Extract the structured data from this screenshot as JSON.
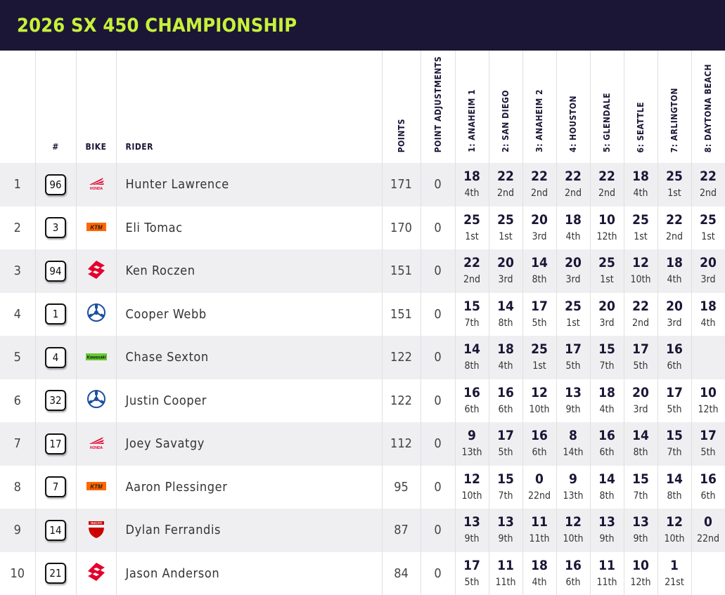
{
  "title": "2026 SX 450 CHAMPIONSHIP",
  "columns": {
    "pos": "",
    "number": "#",
    "bike": "BIKE",
    "rider": "RIDER",
    "points": "POINTS",
    "adjustments": "POINT ADJUSTMENTS",
    "races": [
      "1: ANAHEIM 1",
      "2: SAN DIEGO",
      "3: ANAHEIM 2",
      "4: HOUSTON",
      "5: GLENDALE",
      "6: SEATTLE",
      "7: ARLINGTON",
      "8: DAYTONA BEACH"
    ]
  },
  "brands": {
    "honda": {
      "text": "HONDA",
      "color": "#e4002b"
    },
    "ktm": {
      "text": "KTM",
      "color": "#ff6600"
    },
    "suzuki": {
      "color": "#e4002b"
    },
    "yamaha": {
      "color": "#1d4fa0"
    },
    "kawasaki": {
      "text": "Kawasaki",
      "color": "#66cc33"
    },
    "ducati": {
      "text": "DUCATI",
      "color": "#cc0000"
    }
  },
  "rows": [
    {
      "pos": "1",
      "number": "96",
      "bike": "honda",
      "rider": "Hunter Lawrence",
      "points": "171",
      "adj": "0",
      "results": [
        {
          "pts": "18",
          "fin": "4th"
        },
        {
          "pts": "22",
          "fin": "2nd"
        },
        {
          "pts": "22",
          "fin": "2nd"
        },
        {
          "pts": "22",
          "fin": "2nd"
        },
        {
          "pts": "22",
          "fin": "2nd"
        },
        {
          "pts": "18",
          "fin": "4th"
        },
        {
          "pts": "25",
          "fin": "1st"
        },
        {
          "pts": "22",
          "fin": "2nd"
        }
      ]
    },
    {
      "pos": "2",
      "number": "3",
      "bike": "ktm",
      "rider": "Eli Tomac",
      "points": "170",
      "adj": "0",
      "results": [
        {
          "pts": "25",
          "fin": "1st"
        },
        {
          "pts": "25",
          "fin": "1st"
        },
        {
          "pts": "20",
          "fin": "3rd"
        },
        {
          "pts": "18",
          "fin": "4th"
        },
        {
          "pts": "10",
          "fin": "12th"
        },
        {
          "pts": "25",
          "fin": "1st"
        },
        {
          "pts": "22",
          "fin": "2nd"
        },
        {
          "pts": "25",
          "fin": "1st"
        }
      ]
    },
    {
      "pos": "3",
      "number": "94",
      "bike": "suzuki",
      "rider": "Ken Roczen",
      "points": "151",
      "adj": "0",
      "results": [
        {
          "pts": "22",
          "fin": "2nd"
        },
        {
          "pts": "20",
          "fin": "3rd"
        },
        {
          "pts": "14",
          "fin": "8th"
        },
        {
          "pts": "20",
          "fin": "3rd"
        },
        {
          "pts": "25",
          "fin": "1st"
        },
        {
          "pts": "12",
          "fin": "10th"
        },
        {
          "pts": "18",
          "fin": "4th"
        },
        {
          "pts": "20",
          "fin": "3rd"
        }
      ]
    },
    {
      "pos": "4",
      "number": "1",
      "bike": "yamaha",
      "rider": "Cooper Webb",
      "points": "151",
      "adj": "0",
      "results": [
        {
          "pts": "15",
          "fin": "7th"
        },
        {
          "pts": "14",
          "fin": "8th"
        },
        {
          "pts": "17",
          "fin": "5th"
        },
        {
          "pts": "25",
          "fin": "1st"
        },
        {
          "pts": "20",
          "fin": "3rd"
        },
        {
          "pts": "22",
          "fin": "2nd"
        },
        {
          "pts": "20",
          "fin": "3rd"
        },
        {
          "pts": "18",
          "fin": "4th"
        }
      ]
    },
    {
      "pos": "5",
      "number": "4",
      "bike": "kawasaki",
      "rider": "Chase Sexton",
      "points": "122",
      "adj": "0",
      "results": [
        {
          "pts": "14",
          "fin": "8th"
        },
        {
          "pts": "18",
          "fin": "4th"
        },
        {
          "pts": "25",
          "fin": "1st"
        },
        {
          "pts": "17",
          "fin": "5th"
        },
        {
          "pts": "15",
          "fin": "7th"
        },
        {
          "pts": "17",
          "fin": "5th"
        },
        {
          "pts": "16",
          "fin": "6th"
        },
        {
          "pts": "",
          "fin": ""
        }
      ]
    },
    {
      "pos": "6",
      "number": "32",
      "bike": "yamaha",
      "rider": "Justin Cooper",
      "points": "122",
      "adj": "0",
      "results": [
        {
          "pts": "16",
          "fin": "6th"
        },
        {
          "pts": "16",
          "fin": "6th"
        },
        {
          "pts": "12",
          "fin": "10th"
        },
        {
          "pts": "13",
          "fin": "9th"
        },
        {
          "pts": "18",
          "fin": "4th"
        },
        {
          "pts": "20",
          "fin": "3rd"
        },
        {
          "pts": "17",
          "fin": "5th"
        },
        {
          "pts": "10",
          "fin": "12th"
        }
      ]
    },
    {
      "pos": "7",
      "number": "17",
      "bike": "honda",
      "rider": "Joey Savatgy",
      "points": "112",
      "adj": "0",
      "results": [
        {
          "pts": "9",
          "fin": "13th"
        },
        {
          "pts": "17",
          "fin": "5th"
        },
        {
          "pts": "16",
          "fin": "6th"
        },
        {
          "pts": "8",
          "fin": "14th"
        },
        {
          "pts": "16",
          "fin": "6th"
        },
        {
          "pts": "14",
          "fin": "8th"
        },
        {
          "pts": "15",
          "fin": "7th"
        },
        {
          "pts": "17",
          "fin": "5th"
        }
      ]
    },
    {
      "pos": "8",
      "number": "7",
      "bike": "ktm",
      "rider": "Aaron Plessinger",
      "points": "95",
      "adj": "0",
      "results": [
        {
          "pts": "12",
          "fin": "10th"
        },
        {
          "pts": "15",
          "fin": "7th"
        },
        {
          "pts": "0",
          "fin": "22nd"
        },
        {
          "pts": "9",
          "fin": "13th"
        },
        {
          "pts": "14",
          "fin": "8th"
        },
        {
          "pts": "15",
          "fin": "7th"
        },
        {
          "pts": "14",
          "fin": "8th"
        },
        {
          "pts": "16",
          "fin": "6th"
        }
      ]
    },
    {
      "pos": "9",
      "number": "14",
      "bike": "ducati",
      "rider": "Dylan Ferrandis",
      "points": "87",
      "adj": "0",
      "results": [
        {
          "pts": "13",
          "fin": "9th"
        },
        {
          "pts": "13",
          "fin": "9th"
        },
        {
          "pts": "11",
          "fin": "11th"
        },
        {
          "pts": "12",
          "fin": "10th"
        },
        {
          "pts": "13",
          "fin": "9th"
        },
        {
          "pts": "13",
          "fin": "9th"
        },
        {
          "pts": "12",
          "fin": "10th"
        },
        {
          "pts": "0",
          "fin": "22nd"
        }
      ]
    },
    {
      "pos": "10",
      "number": "21",
      "bike": "suzuki",
      "rider": "Jason Anderson",
      "points": "84",
      "adj": "0",
      "results": [
        {
          "pts": "17",
          "fin": "5th"
        },
        {
          "pts": "11",
          "fin": "11th"
        },
        {
          "pts": "18",
          "fin": "4th"
        },
        {
          "pts": "16",
          "fin": "6th"
        },
        {
          "pts": "11",
          "fin": "11th"
        },
        {
          "pts": "10",
          "fin": "12th"
        },
        {
          "pts": "1",
          "fin": "21st"
        },
        {
          "pts": "",
          "fin": ""
        }
      ]
    }
  ]
}
